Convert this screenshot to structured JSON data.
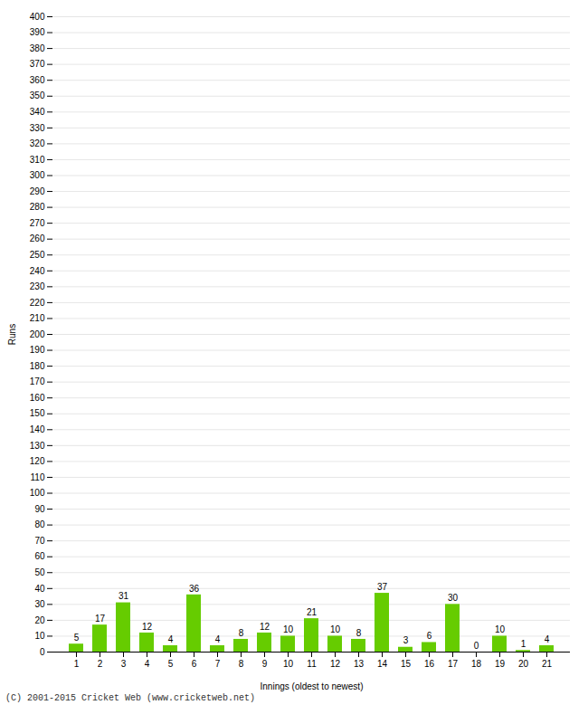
{
  "chart_data": {
    "type": "bar",
    "xlabel": "Innings (oldest to newest)",
    "ylabel": "Runs",
    "categories": [
      "1",
      "2",
      "3",
      "4",
      "5",
      "6",
      "7",
      "8",
      "9",
      "10",
      "11",
      "12",
      "13",
      "14",
      "15",
      "16",
      "17",
      "18",
      "19",
      "20",
      "21"
    ],
    "values": [
      5,
      17,
      31,
      12,
      4,
      36,
      4,
      8,
      12,
      10,
      21,
      10,
      8,
      37,
      3,
      6,
      30,
      0,
      10,
      1,
      4
    ],
    "color": "#66cc00",
    "ylim": [
      0,
      400
    ],
    "yticks": [
      0,
      10,
      20,
      30,
      40,
      50,
      60,
      70,
      80,
      90,
      100,
      110,
      120,
      130,
      140,
      150,
      160,
      170,
      180,
      190,
      200,
      210,
      220,
      230,
      240,
      250,
      260,
      270,
      280,
      290,
      300,
      310,
      320,
      330,
      340,
      350,
      360,
      370,
      380,
      390,
      400
    ],
    "grid": true,
    "data_labels": true,
    "annotations": [
      "(C) 2001-2015 Cricket Web (www.cricketweb.net)"
    ]
  }
}
